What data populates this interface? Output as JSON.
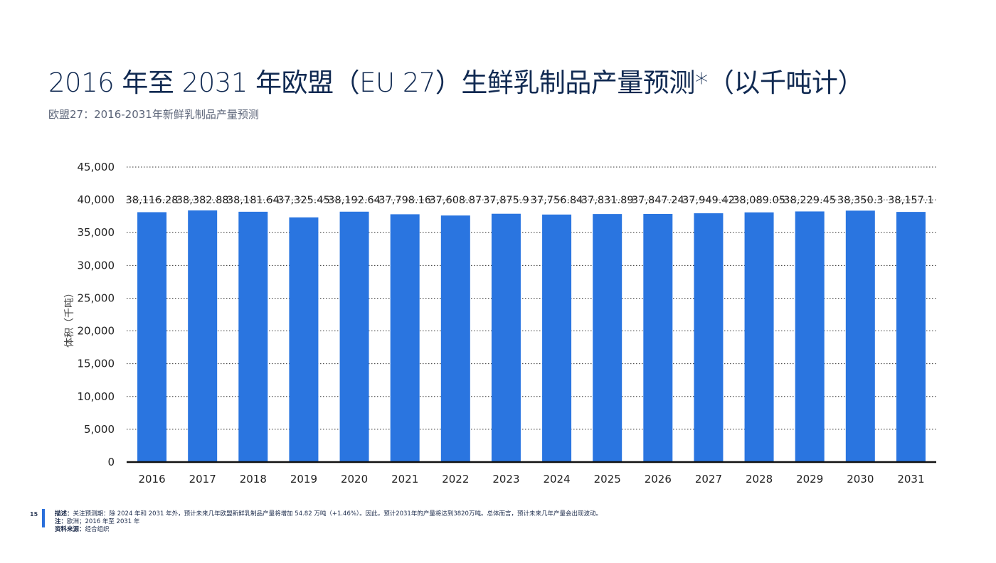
{
  "slide": {
    "title": "2016 年至 2031 年欧盟（EU 27）生鲜乳制品产量预测*（以千吨计）",
    "subtitle": "欧盟27：2016-2031年新鲜乳制品产量预测",
    "page_number": "15"
  },
  "footer": {
    "description_label": "描述：",
    "description_text": "关注预测期：除 2024 年和 2031 年外，预计未来几年欧盟新鲜乳制品产量将增加 54.82 万吨（+1.46%）。因此，预计2031年的产量将达到3820万吨。总体而言，预计未来几年产量会出现波动。",
    "note_label": "注：",
    "note_text": "欧洲；2016 年至 2031 年",
    "source_label": "资料来源：",
    "source_text": "经合组织"
  },
  "colors": {
    "bar": "#2a75e0",
    "axis": "#111111",
    "grid": "#333333"
  },
  "chart_data": {
    "type": "bar",
    "categories": [
      "2016",
      "2017",
      "2018",
      "2019",
      "2020",
      "2021",
      "2022",
      "2023",
      "2024",
      "2025",
      "2026",
      "2027",
      "2028",
      "2029",
      "2030",
      "2031"
    ],
    "values": [
      38116.28,
      38382.88,
      38181.64,
      37325.45,
      38192.64,
      37798.16,
      37608.87,
      37875.9,
      37756.84,
      37831.89,
      37847.24,
      37949.42,
      38089.05,
      38229.45,
      38350.3,
      38157.1
    ],
    "data_labels": [
      "38,116.28",
      "38,382.88",
      "38,181.64",
      "37,325.45",
      "38,192.64",
      "37,798.16",
      "37,608.87",
      "37,875.9",
      "37,756.84",
      "37,831.89",
      "37,847.24",
      "37,949.42",
      "38,089.05",
      "38,229.45",
      "38,350.3",
      "38,157.1"
    ],
    "ylabel": "体积（千吨）",
    "xlabel": "",
    "ylim": [
      0,
      45000
    ],
    "yticks": [
      0,
      5000,
      10000,
      15000,
      20000,
      25000,
      30000,
      35000,
      40000,
      45000
    ],
    "ytick_labels": [
      "0",
      "5,000",
      "10,000",
      "15,000",
      "20,000",
      "25,000",
      "30,000",
      "35,000",
      "40,000",
      "45,000"
    ],
    "grid": "dotted horizontal",
    "legend": "none"
  }
}
